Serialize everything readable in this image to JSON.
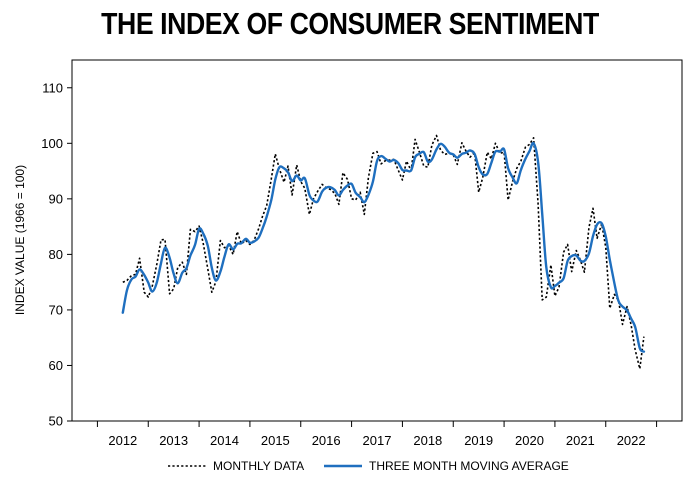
{
  "chart_data": {
    "type": "line",
    "title": "THE INDEX OF CONSUMER SENTIMENT",
    "ylabel": "INDEX VALUE (1966 = 100)",
    "xlabel": "",
    "ylim": [
      50,
      115
    ],
    "xlim": [
      2011,
      2023
    ],
    "y_ticks": [
      "50",
      "60",
      "70",
      "80",
      "90",
      "100",
      "110"
    ],
    "x_ticks": [
      "2012",
      "2013",
      "2014",
      "2015",
      "2016",
      "2017",
      "2018",
      "2019",
      "2020",
      "2021",
      "2022"
    ],
    "legend": [
      "MONTHLY DATA",
      "THREE MONTH MOVING AVERAGE"
    ],
    "legend_position": "bottom",
    "colors": {
      "monthly": "#000000",
      "average": "#1f6fbf",
      "frame": "#000000"
    },
    "series": [
      {
        "name": "MONTHLY DATA",
        "style": "dotted",
        "x": [
          2012.0,
          2012.08,
          2012.17,
          2012.25,
          2012.33,
          2012.42,
          2012.5,
          2012.58,
          2012.67,
          2012.75,
          2012.83,
          2012.92,
          2013.0,
          2013.08,
          2013.17,
          2013.25,
          2013.33,
          2013.42,
          2013.5,
          2013.58,
          2013.67,
          2013.75,
          2013.83,
          2013.92,
          2014.0,
          2014.08,
          2014.17,
          2014.25,
          2014.33,
          2014.42,
          2014.5,
          2014.58,
          2014.67,
          2014.75,
          2014.83,
          2014.92,
          2015.0,
          2015.08,
          2015.17,
          2015.25,
          2015.33,
          2015.42,
          2015.5,
          2015.58,
          2015.67,
          2015.75,
          2015.83,
          2015.92,
          2016.0,
          2016.08,
          2016.17,
          2016.25,
          2016.33,
          2016.42,
          2016.5,
          2016.58,
          2016.67,
          2016.75,
          2016.83,
          2016.92,
          2017.0,
          2017.08,
          2017.17,
          2017.25,
          2017.33,
          2017.42,
          2017.5,
          2017.58,
          2017.67,
          2017.75,
          2017.83,
          2017.92,
          2018.0,
          2018.08,
          2018.17,
          2018.25,
          2018.33,
          2018.42,
          2018.5,
          2018.58,
          2018.67,
          2018.75,
          2018.83,
          2018.92,
          2019.0,
          2019.08,
          2019.17,
          2019.25,
          2019.33,
          2019.42,
          2019.5,
          2019.58,
          2019.67,
          2019.75,
          2019.83,
          2019.92,
          2020.0,
          2020.08,
          2020.17,
          2020.25,
          2020.33,
          2020.42,
          2020.5,
          2020.58,
          2020.67,
          2020.75,
          2020.83,
          2020.92,
          2021.0,
          2021.08,
          2021.17,
          2021.25,
          2021.33,
          2021.42,
          2021.5,
          2021.58,
          2021.67,
          2021.75,
          2021.83,
          2021.92,
          2022.0,
          2022.08,
          2022.17,
          2022.25
        ],
        "values": [
          75.0,
          75.3,
          76.2,
          76.4,
          79.3,
          73.2,
          72.3,
          74.3,
          78.3,
          82.6,
          82.7,
          72.9,
          73.8,
          77.6,
          78.6,
          76.4,
          84.5,
          84.1,
          85.1,
          82.1,
          77.5,
          73.2,
          75.1,
          82.5,
          81.2,
          81.6,
          80.0,
          84.1,
          81.9,
          82.5,
          81.8,
          82.5,
          84.6,
          86.9,
          88.8,
          93.6,
          98.1,
          95.4,
          93.0,
          95.9,
          90.7,
          96.1,
          93.1,
          91.9,
          87.2,
          90.0,
          91.3,
          92.6,
          92.0,
          91.7,
          91.0,
          89.0,
          94.7,
          93.5,
          90.0,
          89.8,
          91.2,
          87.2,
          93.8,
          98.2,
          98.5,
          96.3,
          96.9,
          97.0,
          97.1,
          95.1,
          93.4,
          96.8,
          95.1,
          100.7,
          98.5,
          95.9,
          95.7,
          99.7,
          101.4,
          98.8,
          98.0,
          98.2,
          97.9,
          96.2,
          100.1,
          98.6,
          97.5,
          98.3,
          91.2,
          93.8,
          98.4,
          97.2,
          100.0,
          98.2,
          98.4,
          89.8,
          93.2,
          95.5,
          96.8,
          99.3,
          99.8,
          101.0,
          89.1,
          71.8,
          72.3,
          78.1,
          72.5,
          74.1,
          80.4,
          81.8,
          76.9,
          80.7,
          79.0,
          76.8,
          84.9,
          88.3,
          82.9,
          85.5,
          81.2,
          70.3,
          72.8,
          71.7,
          67.4,
          70.6,
          67.2,
          62.8,
          59.4,
          65.2
        ]
      },
      {
        "name": "THREE MONTH MOVING AVERAGE",
        "style": "solid",
        "x": [
          2012.0,
          2012.08,
          2012.17,
          2012.25,
          2012.33,
          2012.42,
          2012.5,
          2012.58,
          2012.67,
          2012.75,
          2012.83,
          2012.92,
          2013.0,
          2013.08,
          2013.17,
          2013.25,
          2013.33,
          2013.42,
          2013.5,
          2013.58,
          2013.67,
          2013.75,
          2013.83,
          2013.92,
          2014.0,
          2014.08,
          2014.17,
          2014.25,
          2014.33,
          2014.42,
          2014.5,
          2014.58,
          2014.67,
          2014.75,
          2014.83,
          2014.92,
          2015.0,
          2015.08,
          2015.17,
          2015.25,
          2015.33,
          2015.42,
          2015.5,
          2015.58,
          2015.67,
          2015.75,
          2015.83,
          2015.92,
          2016.0,
          2016.08,
          2016.17,
          2016.25,
          2016.33,
          2016.42,
          2016.5,
          2016.58,
          2016.67,
          2016.75,
          2016.83,
          2016.92,
          2017.0,
          2017.08,
          2017.17,
          2017.25,
          2017.33,
          2017.42,
          2017.5,
          2017.58,
          2017.67,
          2017.75,
          2017.83,
          2017.92,
          2018.0,
          2018.08,
          2018.17,
          2018.25,
          2018.33,
          2018.42,
          2018.5,
          2018.58,
          2018.67,
          2018.75,
          2018.83,
          2018.92,
          2019.0,
          2019.08,
          2019.17,
          2019.25,
          2019.33,
          2019.42,
          2019.5,
          2019.58,
          2019.67,
          2019.75,
          2019.83,
          2019.92,
          2020.0,
          2020.08,
          2020.17,
          2020.25,
          2020.33,
          2020.42,
          2020.5,
          2020.58,
          2020.67,
          2020.75,
          2020.83,
          2020.92,
          2021.0,
          2021.08,
          2021.17,
          2021.25,
          2021.33,
          2021.42,
          2021.5,
          2021.58,
          2021.67,
          2021.75,
          2021.83,
          2021.92,
          2022.0,
          2022.08,
          2022.17,
          2022.25
        ],
        "values": [
          69.5,
          73.5,
          75.5,
          76.0,
          77.3,
          76.3,
          74.9,
          73.3,
          75.0,
          78.4,
          81.2,
          79.4,
          76.5,
          74.8,
          76.7,
          77.5,
          79.8,
          81.7,
          84.6,
          83.8,
          81.6,
          77.6,
          75.3,
          76.9,
          79.6,
          81.8,
          80.9,
          81.9,
          82.0,
          82.8,
          82.1,
          82.3,
          83.0,
          84.7,
          86.8,
          89.8,
          93.5,
          95.7,
          95.5,
          94.8,
          93.2,
          94.2,
          93.3,
          93.7,
          90.7,
          89.7,
          89.5,
          91.3,
          92.0,
          92.1,
          91.6,
          90.6,
          91.6,
          92.4,
          92.7,
          91.1,
          90.3,
          89.4,
          90.7,
          93.1,
          96.8,
          97.7,
          97.2,
          96.7,
          97.0,
          96.4,
          95.2,
          95.1,
          95.1,
          97.5,
          98.1,
          98.4,
          96.7,
          97.1,
          98.9,
          99.9,
          99.4,
          98.3,
          98.0,
          97.4,
          98.1,
          98.3,
          98.7,
          98.1,
          95.7,
          94.4,
          94.5,
          96.5,
          98.5,
          98.5,
          98.9,
          95.5,
          93.8,
          92.8,
          95.2,
          97.2,
          98.6,
          100.0,
          96.6,
          87.3,
          77.7,
          74.1,
          74.3,
          74.9,
          75.7,
          78.8,
          79.7,
          79.8,
          78.9,
          78.8,
          80.2,
          83.3,
          85.4,
          85.6,
          83.2,
          79.0,
          74.8,
          71.6,
          70.6,
          69.9,
          68.4,
          66.9,
          63.1,
          62.5
        ]
      }
    ]
  }
}
